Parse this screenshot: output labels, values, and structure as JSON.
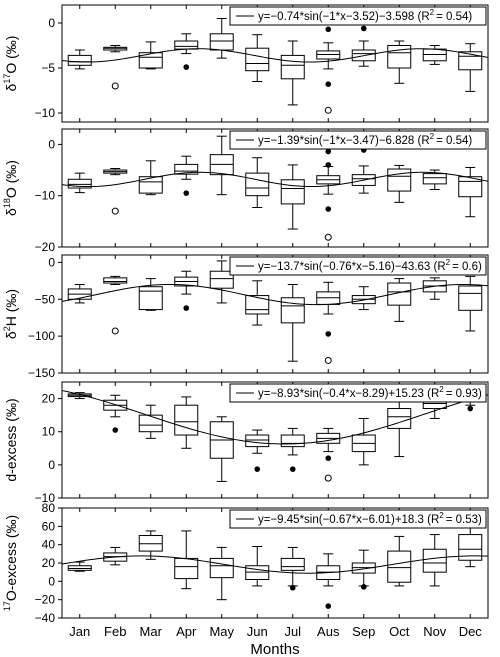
{
  "chart_data": {
    "type": "box",
    "xlabel": "Months",
    "categories": [
      "Jan",
      "Feb",
      "Mar",
      "Apr",
      "May",
      "Jun",
      "Jul",
      "Aus",
      "Sep",
      "Oct",
      "Nov",
      "Dec"
    ],
    "panels": [
      {
        "ylabel": "δ17O (‰)",
        "ylabel_parts": [
          "δ",
          "17",
          "O (‰)"
        ],
        "ylim": [
          -11,
          2
        ],
        "yticks": [
          0,
          -5,
          -10
        ],
        "fit_label": "y=−0.74*sin(−1*x−3.52)−3.598 (R",
        "r2_value": "= 0.54)",
        "fit": {
          "a": -0.74,
          "b": -1,
          "c": -3.52,
          "d": -3.598
        },
        "boxes": [
          {
            "min": -5.1,
            "q1": -4.7,
            "med": -4.3,
            "q3": -3.6,
            "max": -3.0
          },
          {
            "min": -3.2,
            "q1": -3.0,
            "med": -2.8,
            "q3": -2.7,
            "max": -2.5
          },
          {
            "min": -5.1,
            "q1": -5.0,
            "med": -3.8,
            "q3": -3.3,
            "max": -2.1
          },
          {
            "min": -3.4,
            "q1": -2.9,
            "med": -2.6,
            "q3": -2.0,
            "max": -1.2
          },
          {
            "min": -3.9,
            "q1": -3.0,
            "med": -2.0,
            "q3": -1.2,
            "max": 0.5
          },
          {
            "min": -6.5,
            "q1": -5.3,
            "med": -4.5,
            "q3": -2.8,
            "max": -1.3
          },
          {
            "min": -9.1,
            "q1": -6.2,
            "med": -4.7,
            "q3": -3.6,
            "max": -2.0
          },
          {
            "min": -5.1,
            "q1": -4.0,
            "med": -3.5,
            "q3": -3.1,
            "max": -2.2
          },
          {
            "min": -4.8,
            "q1": -4.2,
            "med": -3.4,
            "q3": -3.0,
            "max": -2.0
          },
          {
            "min": -6.7,
            "q1": -5.0,
            "med": -3.3,
            "q3": -2.5,
            "max": -2.0
          },
          {
            "min": -4.6,
            "q1": -4.2,
            "med": -3.5,
            "q3": -2.9,
            "max": -2.5
          },
          {
            "min": -7.6,
            "q1": -5.2,
            "med": -3.7,
            "q3": -3.2,
            "max": -2.3
          }
        ],
        "outliers_filled": [
          {
            "cat": 3,
            "y": -4.9
          },
          {
            "cat": 7,
            "y": -0.7
          },
          {
            "cat": 7,
            "y": -6.8
          },
          {
            "cat": 8,
            "y": -0.6
          }
        ],
        "outliers_open": [
          {
            "cat": 1,
            "y": -7.0
          },
          {
            "cat": 7,
            "y": -9.7
          }
        ]
      },
      {
        "ylabel": "δ18O (‰)",
        "ylabel_parts": [
          "δ",
          "18",
          "O (‰)"
        ],
        "ylim": [
          -20,
          3
        ],
        "yticks": [
          0,
          -10,
          -20
        ],
        "fit_label": "y=−1.39*sin(−1*x−3.47)−6.828 (R",
        "r2_value": "= 0.54)",
        "fit": {
          "a": -1.39,
          "b": -1,
          "c": -3.47,
          "d": -6.828
        },
        "boxes": [
          {
            "min": -9.4,
            "q1": -8.5,
            "med": -7.8,
            "q3": -6.8,
            "max": -5.6
          },
          {
            "min": -5.9,
            "q1": -5.6,
            "med": -5.3,
            "q3": -5.0,
            "max": -4.7
          },
          {
            "min": -9.8,
            "q1": -9.5,
            "med": -7.3,
            "q3": -6.3,
            "max": -3.2
          },
          {
            "min": -6.8,
            "q1": -5.8,
            "med": -5.2,
            "q3": -3.9,
            "max": -2.3
          },
          {
            "min": -9.8,
            "q1": -5.9,
            "med": -3.9,
            "q3": -2.0,
            "max": 1.6
          },
          {
            "min": -12.3,
            "q1": -10.0,
            "med": -8.5,
            "q3": -5.6,
            "max": -2.6
          },
          {
            "min": -16.5,
            "q1": -11.6,
            "med": -8.6,
            "q3": -6.9,
            "max": -4.0
          },
          {
            "min": -9.7,
            "q1": -7.7,
            "med": -6.9,
            "q3": -6.1,
            "max": -4.3
          },
          {
            "min": -9.5,
            "q1": -8.0,
            "med": -6.7,
            "q3": -5.9,
            "max": -4.2
          },
          {
            "min": -11.3,
            "q1": -9.1,
            "med": -6.2,
            "q3": -4.8,
            "max": -4.1
          },
          {
            "min": -8.8,
            "q1": -7.7,
            "med": -6.5,
            "q3": -5.7,
            "max": -5.0
          },
          {
            "min": -14.1,
            "q1": -10.2,
            "med": -7.2,
            "q3": -6.3,
            "max": -4.5
          }
        ],
        "outliers_filled": [
          {
            "cat": 3,
            "y": -9.5
          },
          {
            "cat": 7,
            "y": -1.4
          },
          {
            "cat": 7,
            "y": -4.0
          },
          {
            "cat": 7,
            "y": -12.6
          },
          {
            "cat": 8,
            "y": -1.1
          }
        ],
        "outliers_open": [
          {
            "cat": 1,
            "y": -13.0
          },
          {
            "cat": 7,
            "y": -18.1
          }
        ]
      },
      {
        "ylabel": "δ2H (‰)",
        "ylabel_parts": [
          "δ",
          "2",
          "H (‰)"
        ],
        "ylim": [
          -150,
          10
        ],
        "yticks": [
          0,
          -50,
          -100,
          -150
        ],
        "fit_label": "y=−13.7*sin(−0.76*x−5.16)−43.63 (R",
        "r2_value": "= 0.6)",
        "fit": {
          "a": -13.7,
          "b": -0.76,
          "c": -5.16,
          "d": -43.63
        },
        "boxes": [
          {
            "min": -55,
            "q1": -50,
            "med": -43,
            "q3": -36,
            "max": -30
          },
          {
            "min": -30,
            "q1": -28,
            "med": -26,
            "q3": -21,
            "max": -19
          },
          {
            "min": -65,
            "q1": -64,
            "med": -39,
            "q3": -33,
            "max": -22
          },
          {
            "min": -43,
            "q1": -32,
            "med": -26,
            "q3": -20,
            "max": -12
          },
          {
            "min": -55,
            "q1": -35,
            "med": -22,
            "q3": -12,
            "max": 2
          },
          {
            "min": -85,
            "q1": -70,
            "med": -64,
            "q3": -45,
            "max": -25
          },
          {
            "min": -134,
            "q1": -82,
            "med": -59,
            "q3": -48,
            "max": -30
          },
          {
            "min": -70,
            "q1": -57,
            "med": -48,
            "q3": -40,
            "max": -27
          },
          {
            "min": -64,
            "q1": -56,
            "med": -50,
            "q3": -45,
            "max": -33
          },
          {
            "min": -80,
            "q1": -58,
            "med": -40,
            "q3": -28,
            "max": -22
          },
          {
            "min": -50,
            "q1": -40,
            "med": -32,
            "q3": -25,
            "max": -21
          },
          {
            "min": -93,
            "q1": -65,
            "med": -42,
            "q3": -32,
            "max": -19
          }
        ],
        "outliers_filled": [
          {
            "cat": 3,
            "y": -62
          },
          {
            "cat": 7,
            "y": -12
          },
          {
            "cat": 7,
            "y": -97
          },
          {
            "cat": 8,
            "y": -9
          }
        ],
        "outliers_open": [
          {
            "cat": 1,
            "y": -93
          },
          {
            "cat": 7,
            "y": -133
          }
        ]
      },
      {
        "ylabel": "d-excess (‰)",
        "ylabel_parts": [
          "",
          "",
          "d-excess (‰)"
        ],
        "ylim": [
          -10,
          25
        ],
        "yticks": [
          20,
          10,
          0,
          -10
        ],
        "fit_label": "y=−8.93*sin(−0.4*x−8.29)+15.23 (R",
        "r2_value": "= 0.93)",
        "fit": {
          "a": -8.93,
          "b": -0.4,
          "c": -8.29,
          "d": 15.23
        },
        "boxes": [
          {
            "min": 20.0,
            "q1": 20.6,
            "med": 21.0,
            "q3": 21.4,
            "max": 21.8
          },
          {
            "min": 14.5,
            "q1": 16.5,
            "med": 18.0,
            "q3": 19.5,
            "max": 21.0
          },
          {
            "min": 8.0,
            "q1": 10.0,
            "med": 12.0,
            "q3": 15.0,
            "max": 18.0
          },
          {
            "min": 5.0,
            "q1": 9.0,
            "med": 13.0,
            "q3": 18.0,
            "max": 20.5
          },
          {
            "min": -5.0,
            "q1": 2.0,
            "med": 7.5,
            "q3": 13.0,
            "max": 14.5
          },
          {
            "min": 3.5,
            "q1": 5.5,
            "med": 7.5,
            "q3": 9.0,
            "max": 10.5
          },
          {
            "min": 3.0,
            "q1": 5.5,
            "med": 6.5,
            "q3": 9.0,
            "max": 11.0
          },
          {
            "min": 4.0,
            "q1": 6.5,
            "med": 8.0,
            "q3": 9.5,
            "max": 11.0
          },
          {
            "min": 0.0,
            "q1": 4.0,
            "med": 6.5,
            "q3": 9.0,
            "max": 14.0
          },
          {
            "min": 2.5,
            "q1": 11.0,
            "med": 14.5,
            "q3": 17.0,
            "max": 19.5
          },
          {
            "min": 14.0,
            "q1": 17.0,
            "med": 18.5,
            "q3": 20.5,
            "max": 22.0
          },
          {
            "min": 18.0,
            "q1": 20.0,
            "med": 21.0,
            "q3": 21.7,
            "max": 22.0
          }
        ],
        "outliers_filled": [
          {
            "cat": 1,
            "y": 10.5
          },
          {
            "cat": 5,
            "y": -1.3
          },
          {
            "cat": 6,
            "y": -1.3
          },
          {
            "cat": 7,
            "y": 2.0
          },
          {
            "cat": 11,
            "y": 17.0
          }
        ],
        "outliers_open": [
          {
            "cat": 7,
            "y": -4.0
          }
        ]
      },
      {
        "ylabel": "17O-excess (‰)",
        "ylabel_parts": [
          "",
          "17",
          "O-excess (‰)"
        ],
        "ylim": [
          -40,
          80
        ],
        "yticks": [
          80,
          60,
          40,
          20,
          0,
          -20,
          -40
        ],
        "fit_label": "y=−9.45*sin(−0.67*x−6.01)+18.3 (R",
        "r2_value": "= 0.53)",
        "fit": {
          "a": -9.45,
          "b": -0.67,
          "c": -6.01,
          "d": 18.3
        },
        "boxes": [
          {
            "min": 11,
            "q1": 12,
            "med": 14,
            "q3": 17,
            "max": 21
          },
          {
            "min": 18,
            "q1": 22,
            "med": 27,
            "q3": 31,
            "max": 37
          },
          {
            "min": 24,
            "q1": 33,
            "med": 41,
            "q3": 50,
            "max": 55
          },
          {
            "min": -8,
            "q1": 3,
            "med": 16,
            "q3": 25,
            "max": 55
          },
          {
            "min": -20,
            "q1": 4,
            "med": 17,
            "q3": 25,
            "max": 37
          },
          {
            "min": -5,
            "q1": 2,
            "med": 10,
            "q3": 17,
            "max": 38
          },
          {
            "min": -5,
            "q1": 12,
            "med": 16,
            "q3": 25,
            "max": 37
          },
          {
            "min": -5,
            "q1": 2,
            "med": 10,
            "q3": 17,
            "max": 30
          },
          {
            "min": -5,
            "q1": 9,
            "med": 15,
            "q3": 20,
            "max": 34
          },
          {
            "min": -5,
            "q1": -1,
            "med": 15,
            "q3": 33,
            "max": 49
          },
          {
            "min": -5,
            "q1": 10,
            "med": 20,
            "q3": 35,
            "max": 51
          },
          {
            "min": 16,
            "q1": 23,
            "med": 35,
            "q3": 51,
            "max": 62
          }
        ],
        "outliers_filled": [
          {
            "cat": 6,
            "y": -7
          },
          {
            "cat": 7,
            "y": -27
          },
          {
            "cat": 8,
            "y": -6
          }
        ],
        "outliers_open": []
      }
    ]
  }
}
